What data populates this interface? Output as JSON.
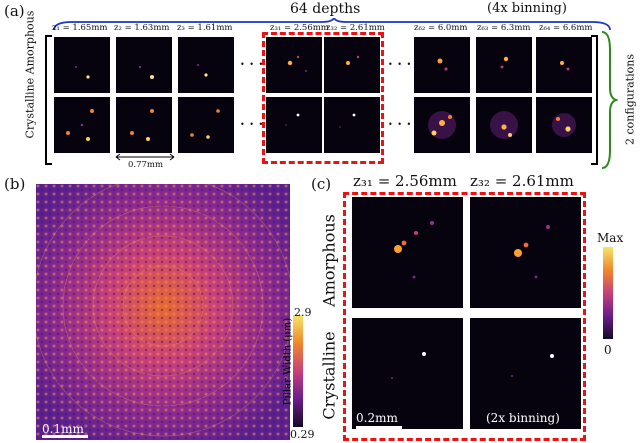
{
  "panel_a": {
    "label": "(a)",
    "top_label": "64 depths",
    "binning_label": "(4x binning)",
    "row_label": "Crystalline Amorphous",
    "right_label": "2 configurations",
    "scale_label": "0.77mm",
    "depths": [
      "z₁ = 1.65mm",
      "z₂ = 1.63mm",
      "z₃ = 1.61mm",
      "z₃₁ = 2.56mm",
      "z₃₂ = 2.61mm",
      "z₆₂ = 6.0mm",
      "z₆₃ = 6.3mm",
      "z₆₄ = 6.6mm"
    ],
    "ellipsis": "• • •"
  },
  "panel_b": {
    "label": "(b)",
    "colorbar_label": "Pillar Width (μm)",
    "cb_max": "2.9",
    "cb_min": "0.29",
    "scale_label": "0.1mm"
  },
  "panel_c": {
    "label": "(c)",
    "z31": "z₃₁ = 2.56mm",
    "z32": "z₃₂ = 2.61mm",
    "row1": "Amorphous",
    "row2": "Crystalline",
    "cb_max": "Max",
    "cb_min": "0",
    "scale_label": "0.2mm",
    "binning": "(2x binning)"
  },
  "colors": {
    "accent_blue": "#1a36c8",
    "accent_green": "#2f8a1d",
    "dash_red": "#e11111"
  }
}
